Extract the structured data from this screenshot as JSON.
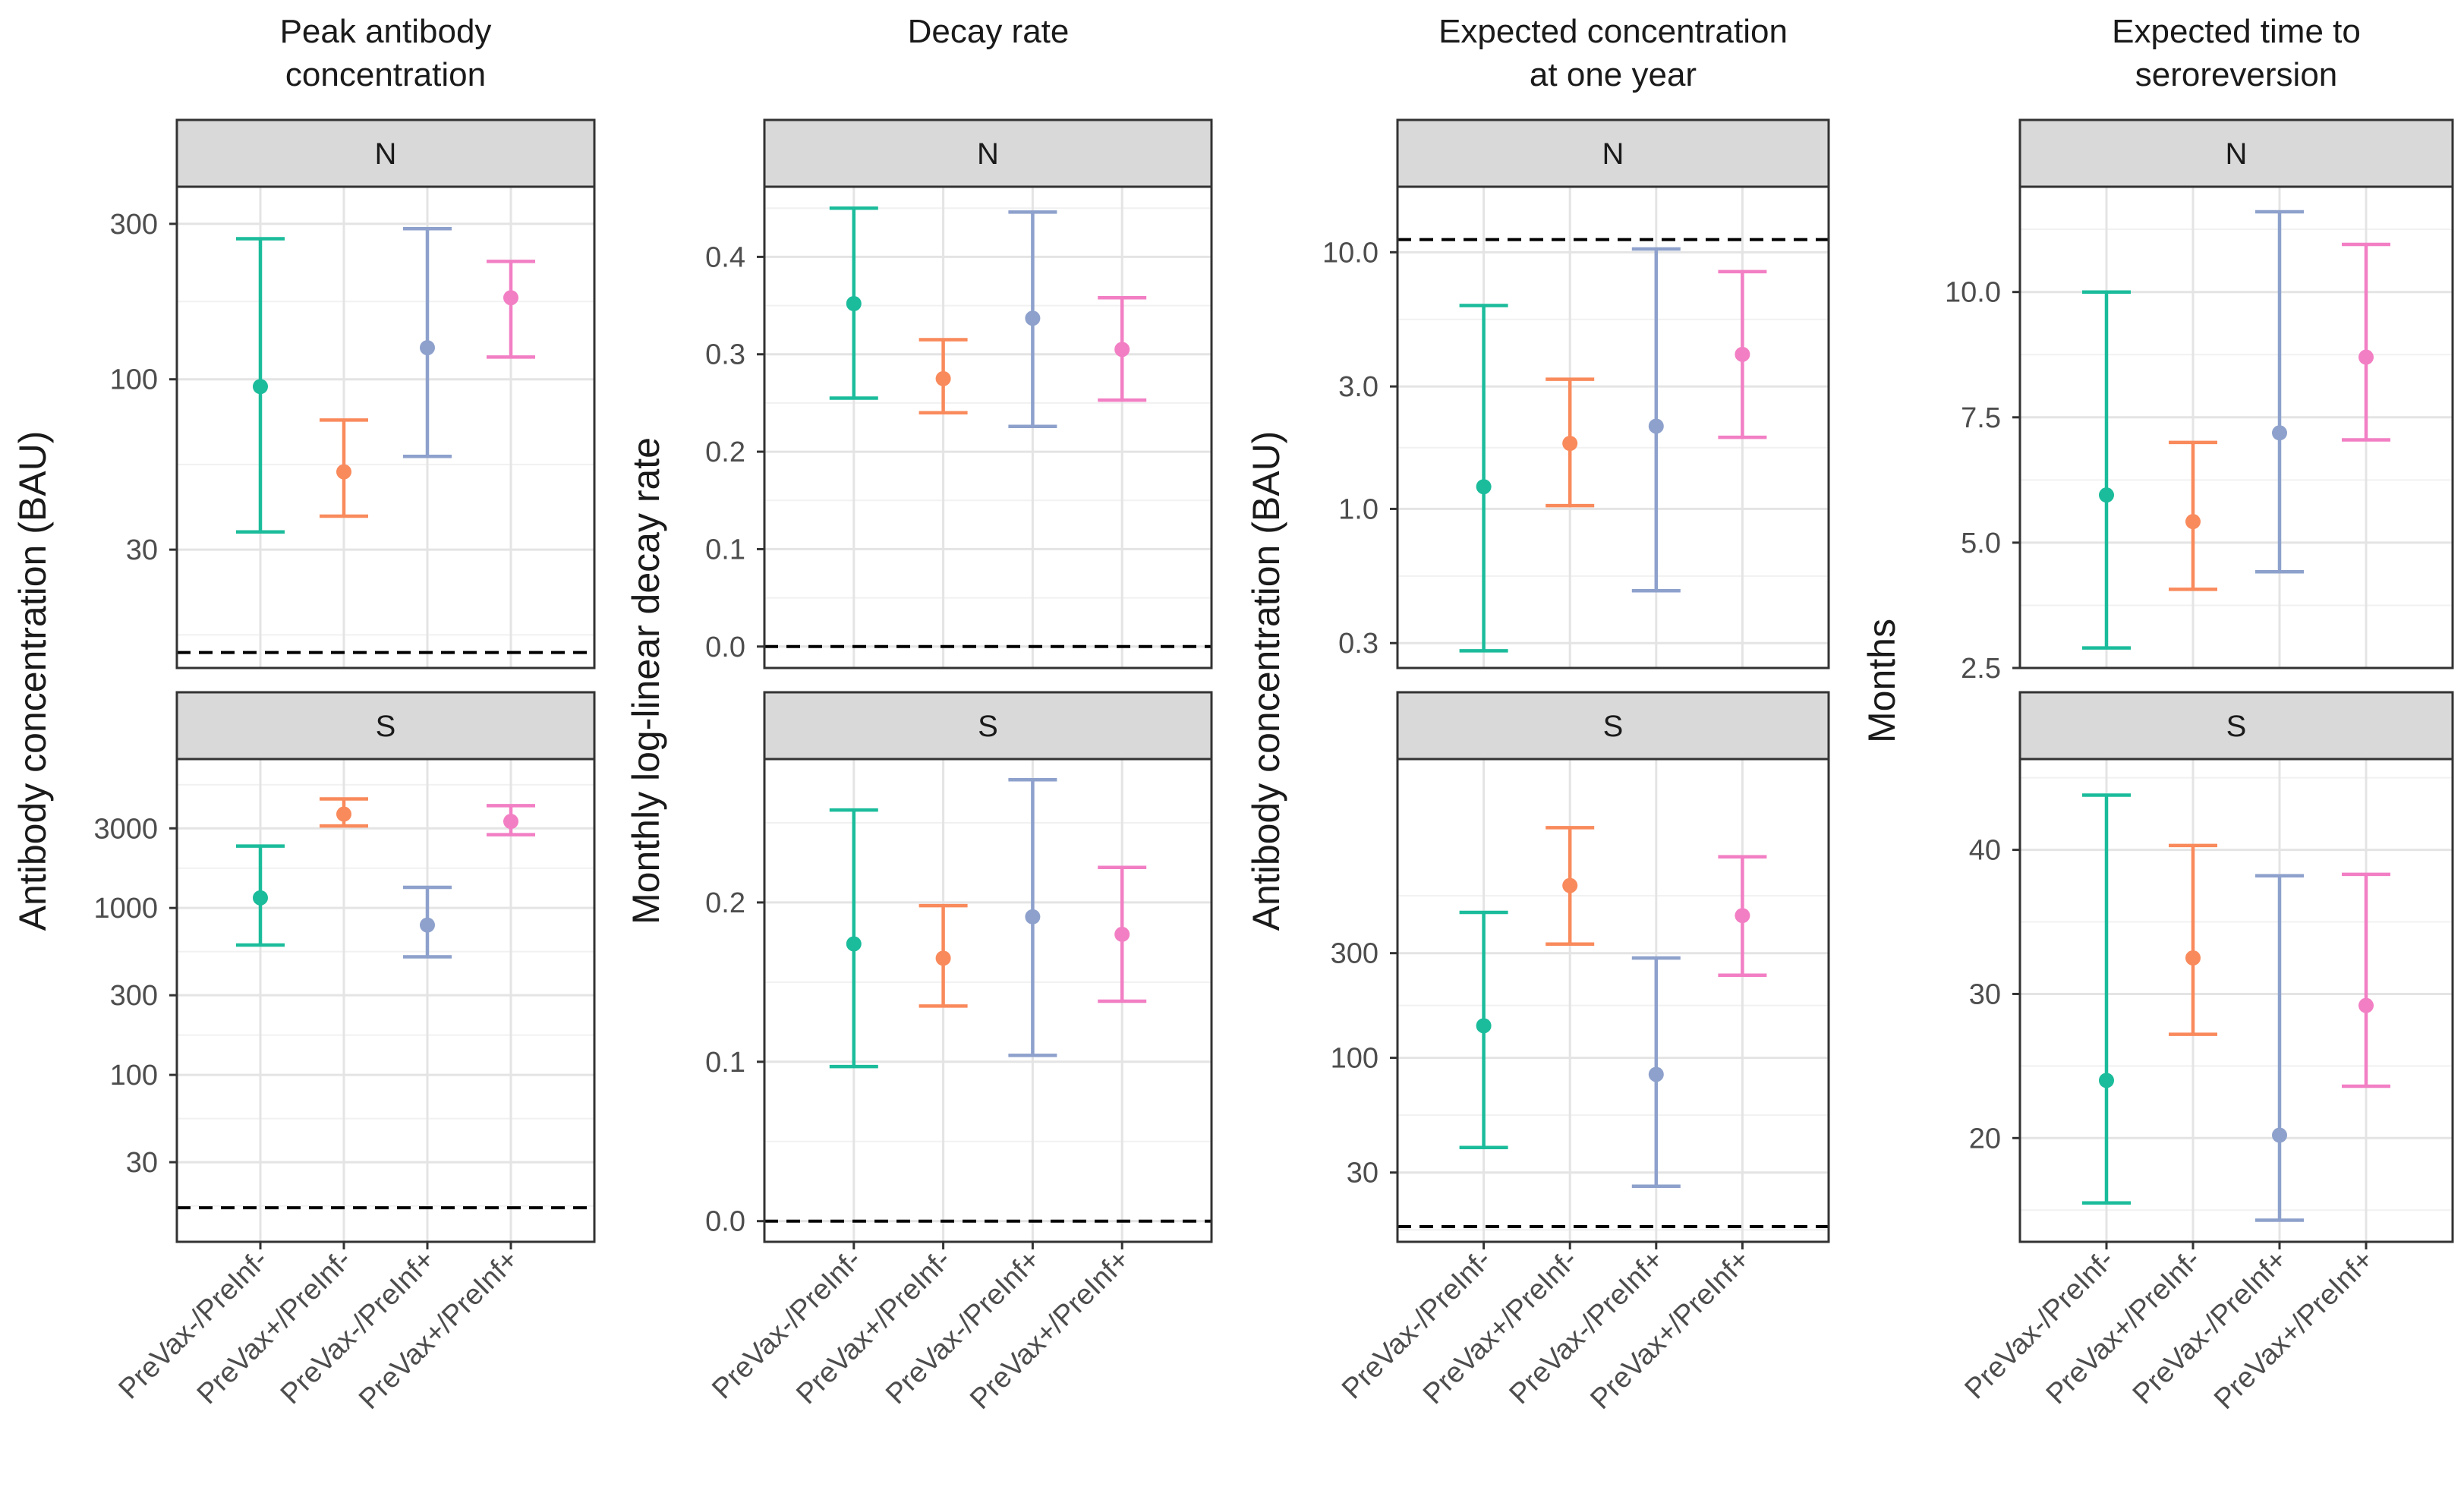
{
  "groups": [
    "PreVax-/PreInf-",
    "PreVax+/PreInf-",
    "PreVax-/PreInf+",
    "PreVax+/PreInf+"
  ],
  "colors": [
    "#1bbc9b",
    "#f98a5c",
    "#8ea1cc",
    "#f27fc4"
  ],
  "chart_data": [
    {
      "type": "errorbar",
      "title": [
        "Peak antibody",
        "concentration"
      ],
      "ylabel": "Antibody concentration (BAU)",
      "panels": [
        {
          "strip": "N",
          "scale": "log",
          "ylim": [
            13,
            390
          ],
          "ticks": [
            30,
            100,
            300
          ],
          "tick_labels": [
            "30",
            "100",
            "300"
          ],
          "reference_line": 14.5,
          "points": [
            {
              "est": 95,
              "lo": 34,
              "hi": 270
            },
            {
              "est": 52,
              "lo": 38,
              "hi": 75
            },
            {
              "est": 125,
              "lo": 58,
              "hi": 290
            },
            {
              "est": 178,
              "lo": 117,
              "hi": 230
            }
          ]
        },
        {
          "strip": "S",
          "scale": "log",
          "ylim": [
            10,
            7800
          ],
          "ticks": [
            30,
            100,
            300,
            1000,
            3000
          ],
          "tick_labels": [
            "30",
            "100",
            "300",
            "1000",
            "3000"
          ],
          "reference_line": 16,
          "points": [
            {
              "est": 1150,
              "lo": 600,
              "hi": 2350
            },
            {
              "est": 3650,
              "lo": 3100,
              "hi": 4500
            },
            {
              "est": 790,
              "lo": 510,
              "hi": 1330
            },
            {
              "est": 3300,
              "lo": 2750,
              "hi": 4100
            }
          ]
        }
      ]
    },
    {
      "type": "errorbar",
      "title": [
        "Decay rate"
      ],
      "ylabel": "Monthly log-linear decay rate",
      "panels": [
        {
          "strip": "N",
          "scale": "linear",
          "ylim": [
            -0.022,
            0.472
          ],
          "ticks": [
            0.0,
            0.1,
            0.2,
            0.3,
            0.4
          ],
          "tick_labels": [
            "0.0",
            "0.1",
            "0.2",
            "0.3",
            "0.4"
          ],
          "reference_line": 0.0,
          "points": [
            {
              "est": 0.352,
              "lo": 0.255,
              "hi": 0.45
            },
            {
              "est": 0.275,
              "lo": 0.24,
              "hi": 0.315
            },
            {
              "est": 0.337,
              "lo": 0.226,
              "hi": 0.446
            },
            {
              "est": 0.305,
              "lo": 0.253,
              "hi": 0.358
            }
          ]
        },
        {
          "strip": "S",
          "scale": "linear",
          "ylim": [
            -0.013,
            0.29
          ],
          "ticks": [
            0.0,
            0.1,
            0.2
          ],
          "tick_labels": [
            "0.0",
            "0.1",
            "0.2"
          ],
          "reference_line": 0.0,
          "points": [
            {
              "est": 0.174,
              "lo": 0.097,
              "hi": 0.258
            },
            {
              "est": 0.165,
              "lo": 0.135,
              "hi": 0.198
            },
            {
              "est": 0.191,
              "lo": 0.104,
              "hi": 0.277
            },
            {
              "est": 0.18,
              "lo": 0.138,
              "hi": 0.222
            }
          ]
        }
      ]
    },
    {
      "type": "errorbar",
      "title": [
        "Expected concentration",
        "at one year"
      ],
      "ylabel": "Antibody concentration (BAU)",
      "panels": [
        {
          "strip": "N",
          "scale": "log",
          "ylim": [
            0.24,
            18
          ],
          "ticks": [
            0.3,
            1,
            3,
            10
          ],
          "tick_labels": [
            "0.3",
            "1.0",
            "3.0",
            "10.0"
          ],
          "reference_line": 11.2,
          "points": [
            {
              "est": 1.22,
              "lo": 0.28,
              "hi": 6.2
            },
            {
              "est": 1.8,
              "lo": 1.03,
              "hi": 3.2
            },
            {
              "est": 2.1,
              "lo": 0.48,
              "hi": 10.3
            },
            {
              "est": 4.0,
              "lo": 1.9,
              "hi": 8.4
            }
          ]
        },
        {
          "strip": "S",
          "scale": "log",
          "ylim": [
            14.5,
            2300
          ],
          "ticks": [
            30,
            100,
            300
          ],
          "tick_labels": [
            "30",
            "100",
            "300"
          ],
          "reference_line": 17,
          "points": [
            {
              "est": 140,
              "lo": 39,
              "hi": 460
            },
            {
              "est": 610,
              "lo": 330,
              "hi": 1120
            },
            {
              "est": 84,
              "lo": 26,
              "hi": 285
            },
            {
              "est": 445,
              "lo": 238,
              "hi": 825
            }
          ]
        }
      ]
    },
    {
      "type": "errorbar",
      "title": [
        "Expected time to",
        "seroreversion"
      ],
      "ylabel": "Months",
      "panels": [
        {
          "strip": "N",
          "scale": "linear",
          "ylim": [
            2.5,
            12.1
          ],
          "ticks": [
            2.5,
            5.0,
            7.5,
            10.0
          ],
          "tick_labels": [
            "2.5",
            "5.0",
            "7.5",
            "10.0"
          ],
          "reference_line": null,
          "points": [
            {
              "est": 5.95,
              "lo": 2.9,
              "hi": 10.0
            },
            {
              "est": 5.42,
              "lo": 4.07,
              "hi": 7.0
            },
            {
              "est": 7.19,
              "lo": 4.42,
              "hi": 11.6
            },
            {
              "est": 8.7,
              "lo": 7.05,
              "hi": 10.95
            }
          ]
        },
        {
          "strip": "S",
          "scale": "linear",
          "ylim": [
            12.8,
            46.3
          ],
          "ticks": [
            20,
            30,
            40
          ],
          "tick_labels": [
            "20",
            "30",
            "40"
          ],
          "reference_line": null,
          "points": [
            {
              "est": 24.0,
              "lo": 15.5,
              "hi": 43.8
            },
            {
              "est": 32.5,
              "lo": 27.2,
              "hi": 40.3
            },
            {
              "est": 20.2,
              "lo": 14.3,
              "hi": 38.2
            },
            {
              "est": 29.2,
              "lo": 23.6,
              "hi": 38.3
            }
          ]
        }
      ]
    }
  ]
}
